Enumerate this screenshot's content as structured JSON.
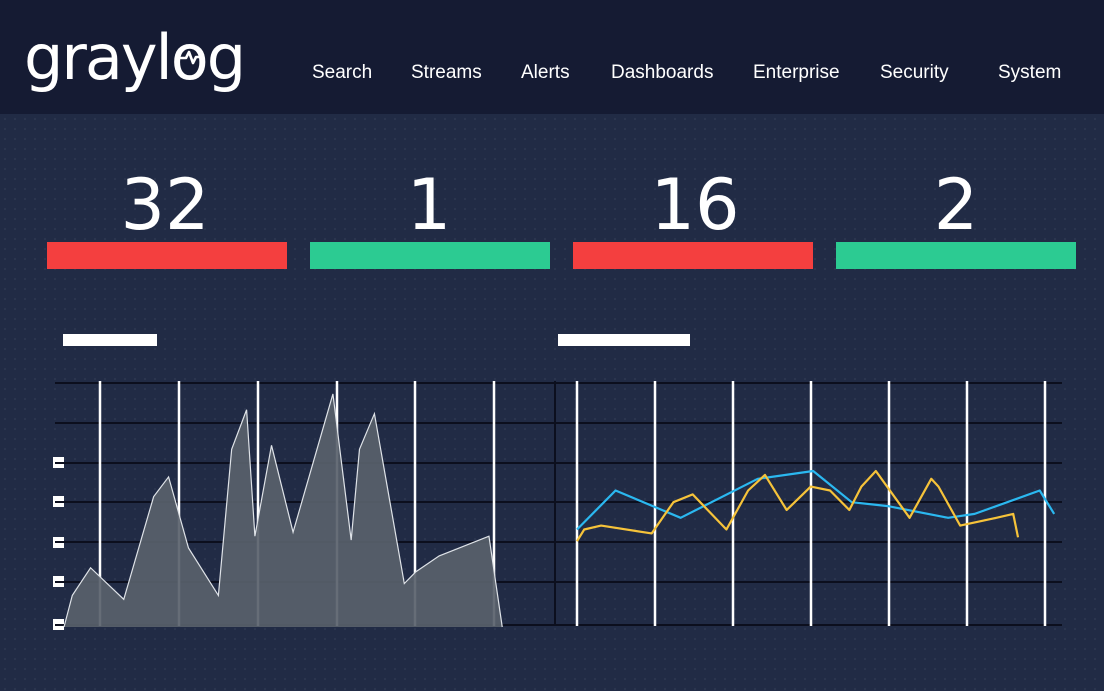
{
  "nav": {
    "logo_text": "graylog",
    "items": [
      {
        "label": "Search"
      },
      {
        "label": "Streams"
      },
      {
        "label": "Alerts"
      },
      {
        "label": "Dashboards"
      },
      {
        "label": "Enterprise"
      },
      {
        "label": "Security"
      },
      {
        "label": "System"
      }
    ]
  },
  "metrics": [
    {
      "value": "32",
      "status_color": "#f43f3f"
    },
    {
      "value": "1",
      "status_color": "#2ccb92"
    },
    {
      "value": "16",
      "status_color": "#f43f3f"
    },
    {
      "value": "2",
      "status_color": "#2ccb92"
    }
  ],
  "colors": {
    "background": "#212b45",
    "navbar": "#151b33",
    "alert": "#f43f3f",
    "ok": "#2ccb92",
    "area_fill": "#59616b",
    "line_blue": "#2bb8f0",
    "line_yellow": "#f6c33a"
  },
  "chart_data": [
    {
      "type": "area",
      "title": "",
      "ylim": [
        0,
        6
      ],
      "y_ticks": 5,
      "grid": true,
      "x": [
        0,
        0.5,
        1.6,
        3.6,
        5.4,
        6.3,
        7.5,
        9.3,
        10.1,
        11.0,
        11.5,
        12.5,
        13.8,
        16.2,
        17.3,
        17.8,
        18.7,
        20.5,
        21.2,
        22.6,
        25.6,
        26.4
      ],
      "values": [
        0,
        0.8,
        1.5,
        0.7,
        3.3,
        3.8,
        2.0,
        0.8,
        4.5,
        5.5,
        2.3,
        4.6,
        2.4,
        5.9,
        2.2,
        4.5,
        5.4,
        1.1,
        1.4,
        1.8,
        2.3,
        0
      ]
    },
    {
      "type": "line",
      "title": "",
      "ylim": [
        0,
        6
      ],
      "grid": true,
      "series": [
        {
          "color": "#2bb8f0",
          "x": [
            0,
            1.6,
            4.3,
            7.5,
            9.8,
            11.4,
            12.9,
            15.4,
            16.5,
            19.2,
            19.8
          ],
          "values": [
            2.5,
            3.5,
            2.8,
            3.8,
            4.0,
            3.2,
            3.1,
            2.8,
            2.9,
            3.5,
            2.9
          ]
        },
        {
          "color": "#f6c33a",
          "x": [
            0,
            0.3,
            1.0,
            3.1,
            4.0,
            4.8,
            6.2,
            7.1,
            7.8,
            8.7,
            9.7,
            10.5,
            11.3,
            11.8,
            12.4,
            13.8,
            14.7,
            15.0,
            15.9,
            17.4,
            18.1,
            18.3
          ],
          "values": [
            2.2,
            2.5,
            2.6,
            2.4,
            3.2,
            3.4,
            2.5,
            3.5,
            3.9,
            3.0,
            3.6,
            3.5,
            3.0,
            3.6,
            4.0,
            2.8,
            3.8,
            3.6,
            2.6,
            2.8,
            2.9,
            2.3
          ]
        }
      ]
    }
  ]
}
